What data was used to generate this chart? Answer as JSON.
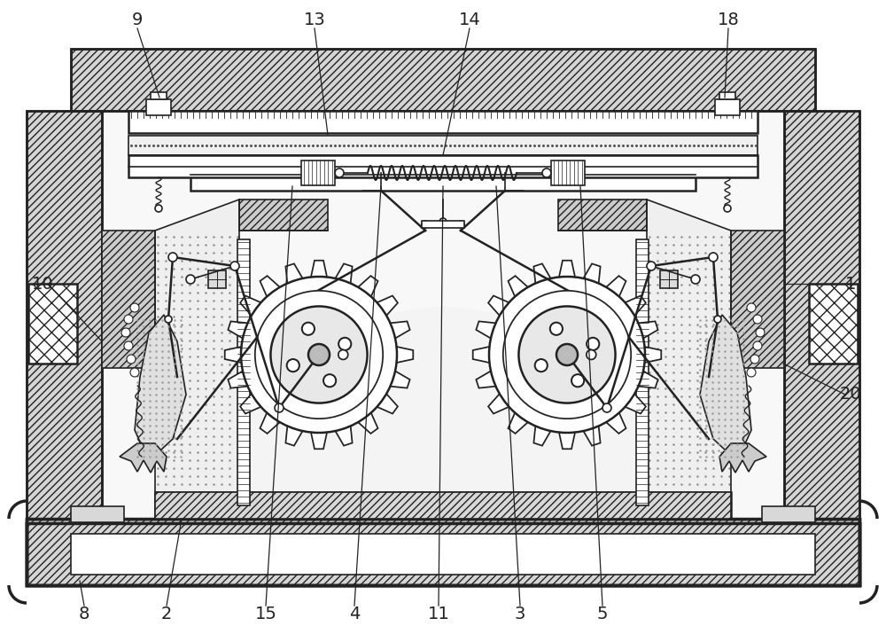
{
  "bg_color": "#ffffff",
  "line_color": "#222222",
  "figsize": [
    10.0,
    7.15
  ],
  "dpi": 100,
  "labels_top": [
    [
      "9",
      155,
      690
    ],
    [
      "13",
      360,
      690
    ],
    [
      "14",
      530,
      690
    ],
    [
      "18",
      820,
      690
    ]
  ],
  "labels_side": [
    [
      "10",
      52,
      400
    ],
    [
      "20",
      958,
      270
    ],
    [
      "1",
      958,
      390
    ]
  ],
  "labels_bottom": [
    [
      "8",
      95,
      25
    ],
    [
      "2",
      185,
      25
    ],
    [
      "15",
      300,
      25
    ],
    [
      "4",
      400,
      25
    ],
    [
      "11",
      495,
      25
    ],
    [
      "3",
      585,
      25
    ],
    [
      "5",
      680,
      25
    ]
  ]
}
